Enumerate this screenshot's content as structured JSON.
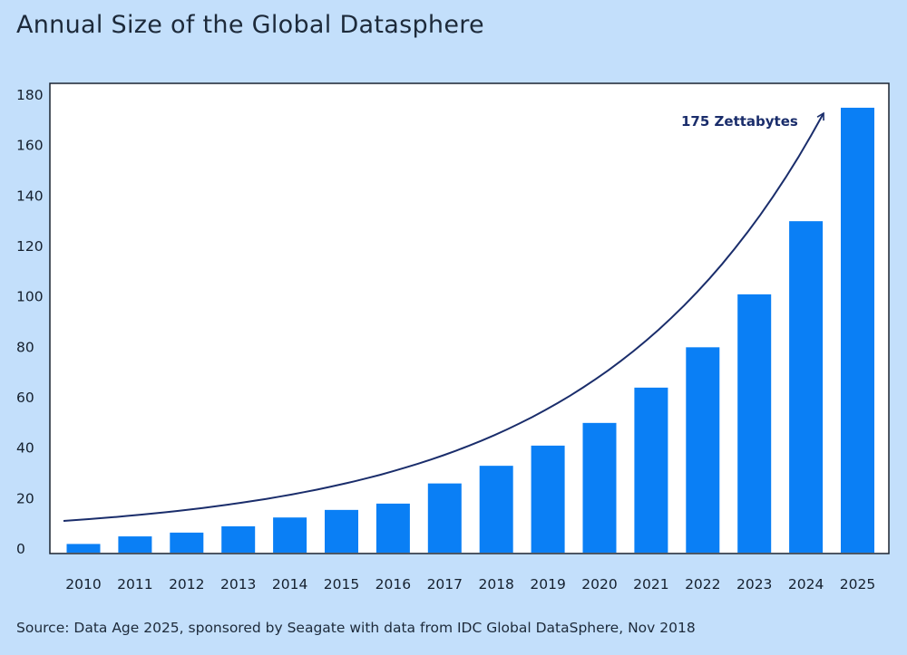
{
  "title": "Annual Size of the Global Datasphere",
  "source": "Source: Data Age 2025, sponsored by Seagate with data from IDC Global DataSphere, Nov 2018",
  "annotation": "175 Zettabytes",
  "colors": {
    "bar": "#0a7ff5",
    "trend": "#1a2d6b",
    "plot_bg": "#ffffff",
    "page_bg": "#c3dffb"
  },
  "chart_data": {
    "type": "bar",
    "title": "Annual Size of the Global Datasphere",
    "xlabel": "",
    "ylabel": "",
    "categories": [
      "2010",
      "2011",
      "2012",
      "2013",
      "2014",
      "2015",
      "2016",
      "2017",
      "2018",
      "2019",
      "2020",
      "2021",
      "2022",
      "2023",
      "2024",
      "2025"
    ],
    "values": [
      2,
      5,
      6.5,
      9,
      12.5,
      15.5,
      18,
      26,
      33,
      41,
      50,
      64,
      80,
      101,
      130,
      175
    ],
    "ylim": [
      0,
      180
    ],
    "yticks": [
      0,
      20,
      40,
      60,
      80,
      100,
      120,
      140,
      160,
      180
    ],
    "grid": false,
    "annotations": [
      {
        "text": "175 Zettabytes",
        "category": "2025"
      }
    ]
  }
}
